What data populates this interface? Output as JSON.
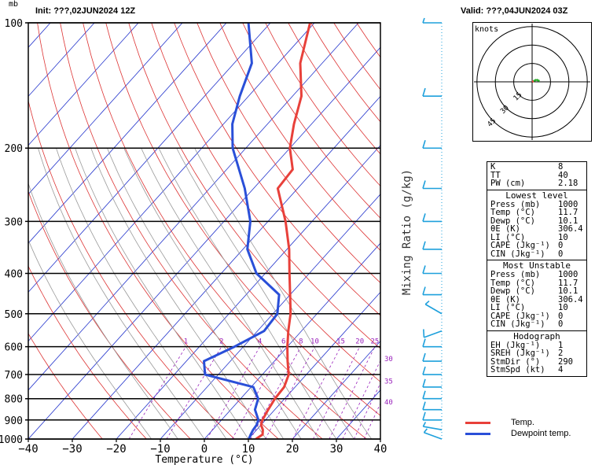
{
  "header": {
    "mb_unit": "mb",
    "init": "Init: ???,02JUN2024 12Z",
    "valid": "Valid: ???,04JUN2024 03Z"
  },
  "colors": {
    "temp": "#e8403a",
    "dewpoint": "#2a4fd8",
    "isotherm": "#2233cc",
    "dry_adiabat": "#dd3333",
    "moist_adiabat": "#999999",
    "mixing_ratio": "#9922bb",
    "wind": "#1ea0dc",
    "hodograph_red": "#e8403a",
    "hodograph_green": "#22aa22"
  },
  "chart_data": [
    {
      "type": "line",
      "subtype": "skew-t log-p",
      "xlabel": "Temperature (°C)",
      "ylabel": "",
      "mixing_ratio_label": "Mixing Ratio (g/kg)",
      "x_ticks": [
        "−40",
        "−30",
        "−20",
        "−10",
        "0",
        "10",
        "20",
        "30",
        "40"
      ],
      "x_tick_values": [
        -40,
        -30,
        -20,
        -10,
        0,
        10,
        20,
        30,
        40
      ],
      "y_ticks": [
        "100",
        "200",
        "300",
        "400",
        "500",
        "600",
        "700",
        "800",
        "900",
        "1000"
      ],
      "y_tick_values": [
        100,
        200,
        300,
        400,
        500,
        600,
        700,
        800,
        900,
        1000
      ],
      "xlim": [
        -40,
        40
      ],
      "ylim": [
        1000,
        100
      ],
      "y_scale": "log",
      "mixing_ratio_values": [
        "1",
        "2",
        "4",
        "6",
        "8",
        "10",
        "15",
        "20",
        "25",
        "30",
        "35",
        "40"
      ],
      "series": [
        {
          "name": "Temp.",
          "points": [
            [
              1000,
              11.7
            ],
            [
              975,
              12.3
            ],
            [
              950,
              11.4
            ],
            [
              925,
              10.0
            ],
            [
              900,
              9.3
            ],
            [
              850,
              8.5
            ],
            [
              800,
              7.8
            ],
            [
              750,
              7.5
            ],
            [
              700,
              6.0
            ],
            [
              650,
              3.0
            ],
            [
              600,
              0.0
            ],
            [
              550,
              -3.0
            ],
            [
              500,
              -6.0
            ],
            [
              450,
              -10.0
            ],
            [
              400,
              -14.5
            ],
            [
              350,
              -19.5
            ],
            [
              300,
              -26.0
            ],
            [
              250,
              -34.5
            ],
            [
              225,
              -35.0
            ],
            [
              200,
              -40.0
            ],
            [
              175,
              -44.0
            ],
            [
              150,
              -48.0
            ],
            [
              125,
              -55.0
            ],
            [
              100,
              -61.0
            ]
          ]
        },
        {
          "name": "Dewpoint temp.",
          "points": [
            [
              1000,
              10.1
            ],
            [
              975,
              9.6
            ],
            [
              950,
              9.2
            ],
            [
              925,
              9.0
            ],
            [
              900,
              8.4
            ],
            [
              850,
              5.5
            ],
            [
              800,
              4.0
            ],
            [
              750,
              0.5
            ],
            [
              700,
              -13.0
            ],
            [
              650,
              -16.0
            ],
            [
              600,
              -12.0
            ],
            [
              550,
              -8.5
            ],
            [
              500,
              -9.0
            ],
            [
              450,
              -12.5
            ],
            [
              400,
              -22.0
            ],
            [
              350,
              -29.0
            ],
            [
              300,
              -34.0
            ],
            [
              250,
              -42.0
            ],
            [
              200,
              -53.0
            ],
            [
              175,
              -58.0
            ],
            [
              150,
              -62.0
            ],
            [
              125,
              -66.0
            ],
            [
              100,
              -75.0
            ]
          ]
        }
      ],
      "wind_barbs": [
        [
          1000,
          290,
          5
        ],
        [
          950,
          280,
          5
        ],
        [
          900,
          270,
          10
        ],
        [
          850,
          270,
          10
        ],
        [
          800,
          270,
          10
        ],
        [
          750,
          270,
          10
        ],
        [
          700,
          270,
          10
        ],
        [
          650,
          270,
          10
        ],
        [
          600,
          270,
          10
        ],
        [
          550,
          250,
          10
        ],
        [
          500,
          300,
          5
        ],
        [
          450,
          270,
          10
        ],
        [
          400,
          270,
          10
        ],
        [
          350,
          270,
          10
        ],
        [
          300,
          270,
          10
        ],
        [
          250,
          270,
          10
        ],
        [
          200,
          270,
          10
        ],
        [
          150,
          270,
          10
        ],
        [
          100,
          270,
          5
        ]
      ]
    },
    {
      "type": "scatter",
      "subtype": "hodograph",
      "unit_label": "knots",
      "ring_labels": [
        "15",
        "30",
        "45"
      ],
      "ring_values": [
        15,
        30,
        45
      ],
      "points": [
        [
          0,
          0,
          "red"
        ],
        [
          2,
          1,
          "red"
        ],
        [
          4,
          2,
          "green"
        ],
        [
          6,
          3,
          "green"
        ],
        [
          8,
          2,
          "green"
        ],
        [
          10,
          1,
          "green"
        ]
      ]
    }
  ],
  "stats": {
    "indices": [
      {
        "k": "K",
        "v": "8"
      },
      {
        "k": "TT",
        "v": "40"
      },
      {
        "k": "PW (cm)",
        "v": "2.18"
      }
    ],
    "lowest": {
      "title": "Lowest level",
      "rows": [
        {
          "k": "Press (mb)",
          "v": "1000"
        },
        {
          "k": "Temp (°C)",
          "v": "11.7"
        },
        {
          "k": "Dewp (°C)",
          "v": "10.1"
        },
        {
          "k": "θE (K)",
          "v": "306.4"
        },
        {
          "k": "LI (°C)",
          "v": "10"
        },
        {
          "k": "CAPE (Jkg⁻¹)",
          "v": "0"
        },
        {
          "k": "CIN (Jkg⁻¹)",
          "v": "0"
        }
      ]
    },
    "unstable": {
      "title": "Most Unstable",
      "rows": [
        {
          "k": "Press (mb)",
          "v": "1000"
        },
        {
          "k": "Temp (°C)",
          "v": "11.7"
        },
        {
          "k": "Dewp (°C)",
          "v": "10.1"
        },
        {
          "k": "θE (K)",
          "v": "306.4"
        },
        {
          "k": "LI (°C)",
          "v": "10"
        },
        {
          "k": "CAPE (Jkg⁻¹)",
          "v": "0"
        },
        {
          "k": "CIN (Jkg⁻¹)",
          "v": "0"
        }
      ]
    },
    "hodo": {
      "title": "Hodograph",
      "rows": [
        {
          "k": "EH (Jkg⁻¹)",
          "v": "1"
        },
        {
          "k": "SREH (Jkg⁻¹)",
          "v": "2"
        },
        {
          "k": "StmDir (°)",
          "v": "290"
        },
        {
          "k": "StmSpd (kt)",
          "v": "4"
        }
      ]
    }
  },
  "legend": [
    {
      "label": "Temp.",
      "color": "#e8403a"
    },
    {
      "label": "Dewpoint temp.",
      "color": "#2a4fd8"
    }
  ]
}
